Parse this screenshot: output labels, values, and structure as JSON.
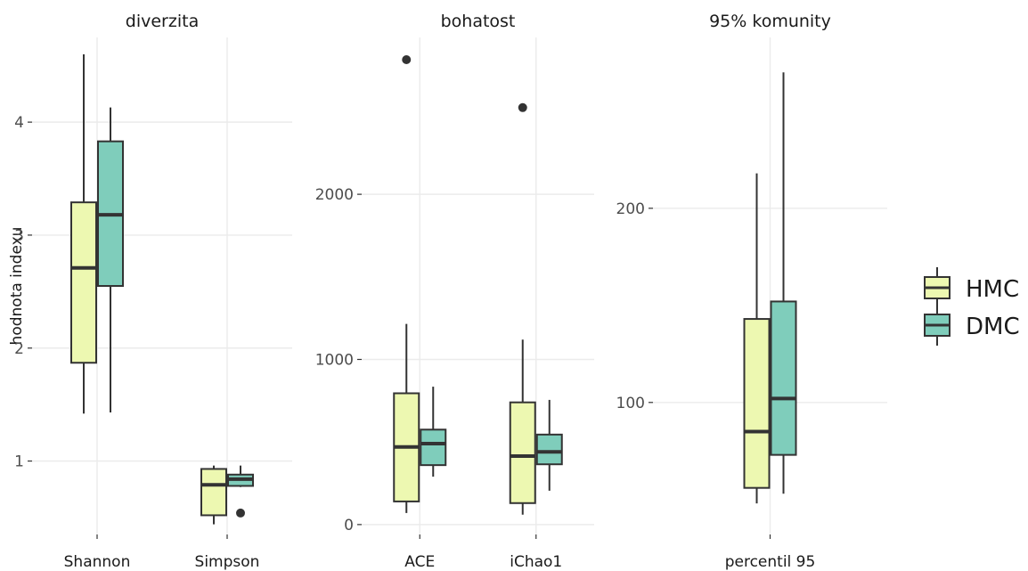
{
  "chart_data": {
    "type": "box",
    "ylabel": "hodnota indexu",
    "legend": {
      "position": "right",
      "entries": [
        {
          "name": "HMC",
          "color": "#EDF8B1"
        },
        {
          "name": "DMC",
          "color": "#7FCDBB"
        }
      ]
    },
    "colors": {
      "HMC": "#EDF8B1",
      "DMC": "#7FCDBB",
      "line": "#333333",
      "grid": "#EBEBEB"
    },
    "panels": [
      {
        "title": "diverzita",
        "categories": [
          "Shannon",
          "Simpson"
        ],
        "ylim": [
          0.35,
          4.75
        ],
        "yticks": [
          1,
          2,
          3,
          4
        ],
        "ytick_labels": [
          "1",
          "2",
          "3",
          "4"
        ],
        "groups": [
          {
            "category": "Shannon",
            "series": "HMC",
            "whisker_low": 1.42,
            "q1": 1.87,
            "median": 2.71,
            "q3": 3.29,
            "whisker_high": 4.6,
            "outliers": []
          },
          {
            "category": "Shannon",
            "series": "DMC",
            "whisker_low": 1.43,
            "q1": 2.55,
            "median": 3.18,
            "q3": 3.83,
            "whisker_high": 4.13,
            "outliers": []
          },
          {
            "category": "Simpson",
            "series": "HMC",
            "whisker_low": 0.44,
            "q1": 0.52,
            "median": 0.79,
            "q3": 0.93,
            "whisker_high": 0.96,
            "outliers": []
          },
          {
            "category": "Simpson",
            "series": "DMC",
            "whisker_low": 0.77,
            "q1": 0.78,
            "median": 0.84,
            "q3": 0.88,
            "whisker_high": 0.96,
            "outliers": [
              0.54
            ]
          }
        ]
      },
      {
        "title": "bohatost",
        "categories": [
          "ACE",
          "iChao1"
        ],
        "ylim": [
          -60,
          2950
        ],
        "yticks": [
          0,
          1000,
          2000
        ],
        "ytick_labels": [
          "0",
          "1000",
          "2000"
        ],
        "groups": [
          {
            "category": "ACE",
            "series": "HMC",
            "whisker_low": 70,
            "q1": 140,
            "median": 470,
            "q3": 795,
            "whisker_high": 1215,
            "outliers": [
              2815
            ]
          },
          {
            "category": "ACE",
            "series": "DMC",
            "whisker_low": 290,
            "q1": 360,
            "median": 490,
            "q3": 575,
            "whisker_high": 835,
            "outliers": []
          },
          {
            "category": "iChao1",
            "series": "HMC",
            "whisker_low": 60,
            "q1": 130,
            "median": 415,
            "q3": 740,
            "whisker_high": 1120,
            "outliers": [
              2525
            ]
          },
          {
            "category": "iChao1",
            "series": "DMC",
            "whisker_low": 205,
            "q1": 365,
            "median": 440,
            "q3": 545,
            "whisker_high": 755,
            "outliers": []
          }
        ]
      },
      {
        "title": "95% komunity",
        "categories": [
          "percentil 95"
        ],
        "ylim": [
          32,
          288
        ],
        "yticks": [
          100,
          200
        ],
        "ytick_labels": [
          "100",
          "200"
        ],
        "groups": [
          {
            "category": "percentil 95",
            "series": "HMC",
            "whisker_low": 48,
            "q1": 56,
            "median": 85,
            "q3": 143,
            "whisker_high": 218,
            "outliers": []
          },
          {
            "category": "percentil 95",
            "series": "DMC",
            "whisker_low": 53,
            "q1": 73,
            "median": 102,
            "q3": 152,
            "whisker_high": 270,
            "outliers": []
          }
        ]
      }
    ]
  }
}
